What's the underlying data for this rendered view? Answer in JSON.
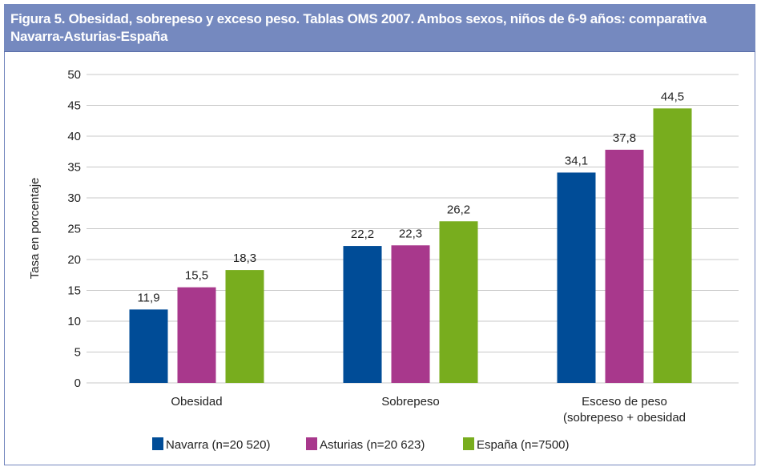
{
  "chart_data": {
    "type": "bar",
    "title_line1": "Figura 5.  Obesidad, sobrepeso y exceso peso. Tablas OMS 2007. Ambos sexos, niños de 6-9 años: comparativa",
    "title_line2": "Navarra-Asturias-España",
    "ylabel": "Tasa en porcentaje",
    "xlabel": "",
    "ylim": [
      0,
      50
    ],
    "yticks": [
      "0",
      "5",
      "10",
      "15",
      "20",
      "25",
      "30",
      "35",
      "40",
      "45",
      "50"
    ],
    "grid": true,
    "legend_position": "bottom",
    "categories": [
      [
        "Obesidad"
      ],
      [
        "Sobrepeso"
      ],
      [
        "Esceso de peso",
        "(sobrepeso + obesidad"
      ]
    ],
    "series": [
      {
        "name": "Navarra (n=20 520)",
        "color": "#004c97",
        "values": [
          11.9,
          22.2,
          34.1
        ],
        "labels": [
          "11,9",
          "22,2",
          "34,1"
        ]
      },
      {
        "name": "Asturias (n=20 623)",
        "color": "#a8388c",
        "values": [
          15.5,
          22.3,
          37.8
        ],
        "labels": [
          "15,5",
          "22,3",
          "37,8"
        ]
      },
      {
        "name": "España (n=7500)",
        "color": "#78ad1e",
        "values": [
          18.3,
          26.2,
          44.5
        ],
        "labels": [
          "18,3",
          "26,2",
          "44,5"
        ]
      }
    ]
  }
}
